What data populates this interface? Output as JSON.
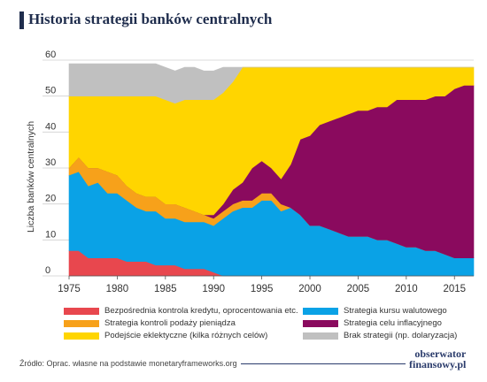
{
  "title": "Historia strategii banków centralnych",
  "colors": {
    "title_accent": "#1f2d4d",
    "background": "#ffffff"
  },
  "source": "Źródło: Oprac. własne na podstawie monetaryframeworks.org",
  "logo": {
    "line1": "obserwator",
    "line2": "finansowy.pl"
  },
  "chart_data": {
    "type": "area",
    "stacked": true,
    "title": "Historia strategii banków centralnych",
    "xlabel": "",
    "ylabel": "Liczba banków centralnych",
    "xlim": [
      1975,
      2017
    ],
    "ylim": [
      0,
      60
    ],
    "xticks": [
      1975,
      1980,
      1985,
      1990,
      1995,
      2000,
      2005,
      2010,
      2015
    ],
    "yticks": [
      0,
      10,
      20,
      30,
      40,
      50,
      60
    ],
    "grid": "horizontal",
    "legend_position": "bottom",
    "x": [
      1975,
      1976,
      1977,
      1978,
      1979,
      1980,
      1981,
      1982,
      1983,
      1984,
      1985,
      1986,
      1987,
      1988,
      1989,
      1990,
      1991,
      1992,
      1993,
      1994,
      1995,
      1996,
      1997,
      1998,
      1999,
      2000,
      2001,
      2002,
      2003,
      2004,
      2005,
      2006,
      2007,
      2008,
      2009,
      2010,
      2011,
      2012,
      2013,
      2014,
      2015,
      2016,
      2017
    ],
    "series": [
      {
        "name": "Bezpośrednia kontrola kredytu, oprocentowania etc.",
        "color": "#e8474e",
        "values": [
          7,
          7,
          5,
          5,
          5,
          5,
          4,
          4,
          4,
          3,
          3,
          3,
          2,
          2,
          2,
          1,
          0,
          0,
          0,
          0,
          0,
          0,
          0,
          0,
          0,
          0,
          0,
          0,
          0,
          0,
          0,
          0,
          0,
          0,
          0,
          0,
          0,
          0,
          0,
          0,
          0,
          0,
          0
        ]
      },
      {
        "name": "Strategia kursu walutowego",
        "color": "#0aa2e6",
        "values": [
          21,
          22,
          20,
          21,
          18,
          18,
          17,
          15,
          14,
          15,
          13,
          13,
          13,
          13,
          13,
          13,
          16,
          18,
          19,
          19,
          21,
          21,
          18,
          19,
          17,
          14,
          14,
          13,
          12,
          11,
          11,
          11,
          10,
          10,
          9,
          8,
          8,
          7,
          7,
          6,
          5,
          5,
          5
        ]
      },
      {
        "name": "Strategia kontroli podaży pieniądza",
        "color": "#f7a11a",
        "values": [
          2,
          4,
          5,
          4,
          6,
          5,
          4,
          4,
          4,
          4,
          4,
          4,
          4,
          3,
          2,
          2,
          2,
          2,
          2,
          2,
          2,
          2,
          2,
          0,
          0,
          0,
          0,
          0,
          0,
          0,
          0,
          0,
          0,
          0,
          0,
          0,
          0,
          0,
          0,
          0,
          0,
          0,
          0
        ]
      },
      {
        "name": "Strategia celu inflacyjnego",
        "color": "#8a0a5e",
        "values": [
          0,
          0,
          0,
          0,
          0,
          0,
          0,
          0,
          0,
          0,
          0,
          0,
          0,
          0,
          0,
          1,
          2,
          4,
          5,
          9,
          9,
          7,
          7,
          12,
          21,
          25,
          28,
          30,
          32,
          34,
          35,
          35,
          37,
          37,
          40,
          41,
          41,
          42,
          43,
          44,
          47,
          48,
          48
        ]
      },
      {
        "name": "Podejście eklektyczne (kilka różnych celów)",
        "color": "#ffd500",
        "values": [
          20,
          17,
          20,
          20,
          21,
          22,
          25,
          27,
          28,
          28,
          29,
          28,
          30,
          31,
          32,
          32,
          31,
          30,
          32,
          28,
          26,
          28,
          31,
          27,
          20,
          19,
          16,
          15,
          14,
          13,
          12,
          12,
          11,
          11,
          9,
          9,
          9,
          9,
          8,
          8,
          6,
          5,
          5
        ]
      },
      {
        "name": "Brak strategii (np. dolaryzacja)",
        "color": "#c0c0c0",
        "values": [
          9,
          9,
          9,
          9,
          9,
          9,
          9,
          9,
          9,
          9,
          9,
          9,
          9,
          9,
          8,
          8,
          7,
          4,
          0,
          0,
          0,
          0,
          0,
          0,
          0,
          0,
          0,
          0,
          0,
          0,
          0,
          0,
          0,
          0,
          0,
          0,
          0,
          0,
          0,
          0,
          0,
          0,
          0
        ]
      }
    ]
  }
}
